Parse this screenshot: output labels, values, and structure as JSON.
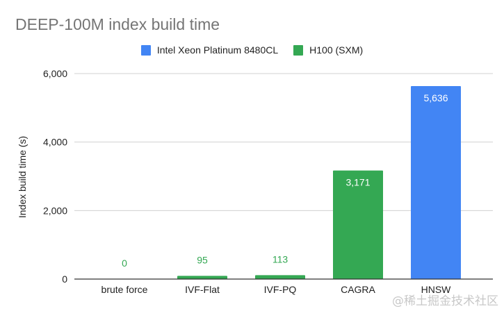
{
  "chart_data": {
    "type": "bar",
    "title": "DEEP-100M index build time",
    "xlabel": "",
    "ylabel": "Index build time (s)",
    "ylim": [
      0,
      6000
    ],
    "yticks": [
      0,
      2000,
      4000,
      6000
    ],
    "ytick_labels": [
      "0",
      "2,000",
      "4,000",
      "6,000"
    ],
    "grid": true,
    "legend_position": "top",
    "categories": [
      "brute force",
      "IVF-Flat",
      "IVF-PQ",
      "CAGRA",
      "HNSW"
    ],
    "series": [
      {
        "name": "Intel Xeon Platinum 8480CL",
        "color": "#4285f4",
        "values": [
          null,
          null,
          null,
          null,
          5636
        ],
        "labels": [
          "",
          "",
          "",
          "",
          "5,636"
        ]
      },
      {
        "name": "H100 (SXM)",
        "color": "#34a853",
        "values": [
          0,
          95,
          113,
          3171,
          null
        ],
        "labels": [
          "0",
          "95",
          "113",
          "3,171",
          ""
        ]
      }
    ]
  },
  "watermark": "@稀土掘金技术社区"
}
